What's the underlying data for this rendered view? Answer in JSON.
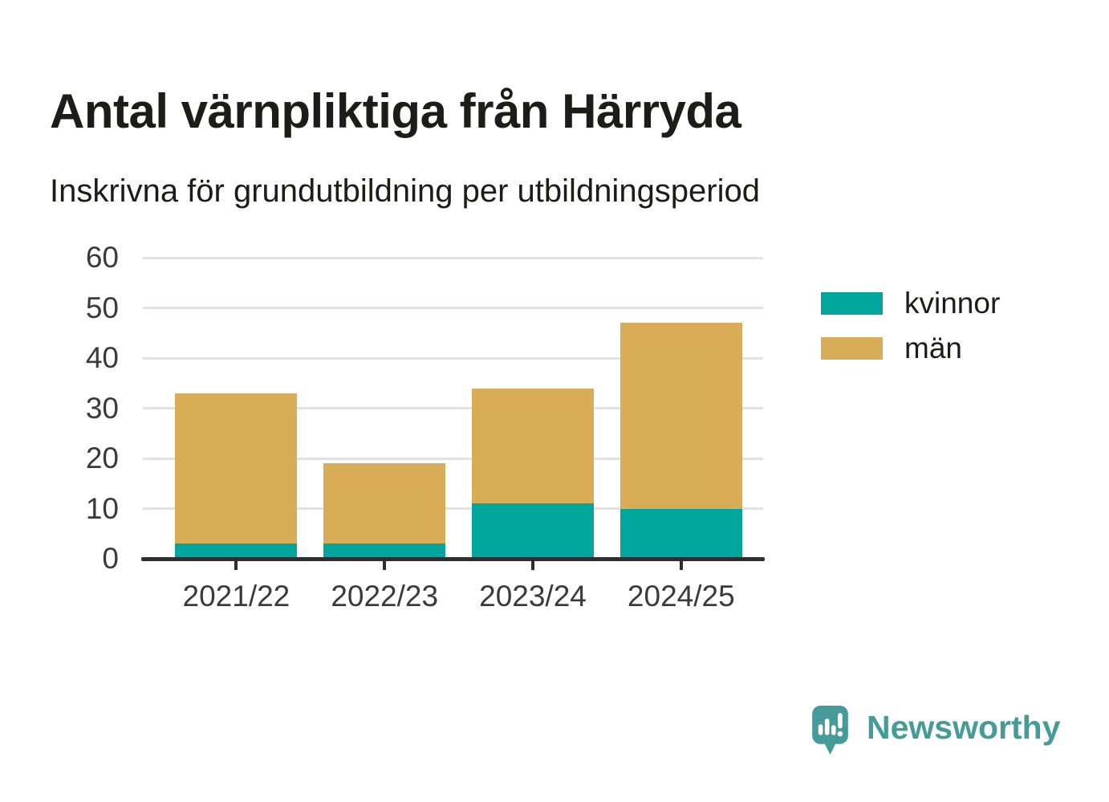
{
  "chart_data": {
    "type": "bar",
    "stacked": true,
    "title": "Antal värnpliktiga från Härryda",
    "subtitle": "Inskrivna för grundutbildning per utbildningsperiod",
    "categories": [
      "2021/22",
      "2022/23",
      "2023/24",
      "2024/25"
    ],
    "series": [
      {
        "name": "kvinnor",
        "color": "#00A59C",
        "values": [
          3,
          3,
          11,
          10
        ]
      },
      {
        "name": "män",
        "color": "#D9AC58",
        "values": [
          30,
          16,
          23,
          37
        ]
      }
    ],
    "stack_totals": [
      33,
      19,
      34,
      47
    ],
    "xlabel": "",
    "ylabel": "",
    "ylim": [
      0,
      60
    ],
    "yticks": [
      0,
      10,
      20,
      30,
      40,
      50,
      60
    ],
    "grid": true,
    "legend_position": "right"
  },
  "branding": {
    "name": "Newsworthy",
    "color": "#459B98"
  },
  "colors": {
    "background": "#FFFFFF",
    "title_text": "#1C1C1A",
    "axis_text": "#3A3A3A",
    "gridline": "#E2E2E2",
    "axis_line": "#2E2E2E"
  }
}
